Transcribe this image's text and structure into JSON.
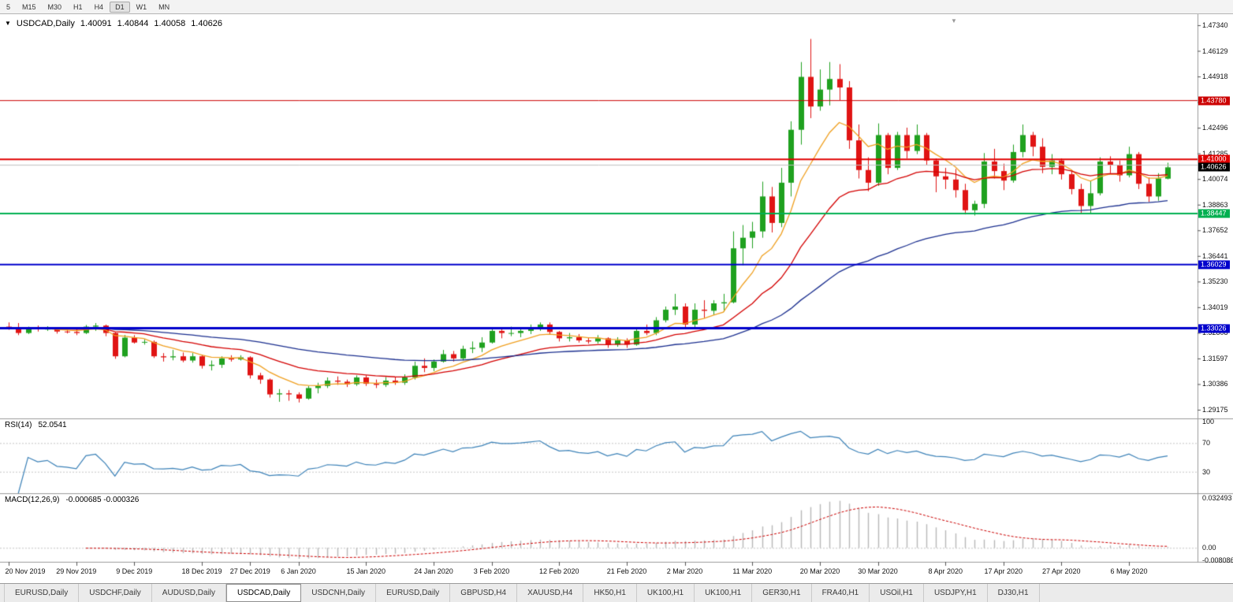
{
  "toolbar": {
    "timeframes": [
      "5",
      "M15",
      "M30",
      "H1",
      "H4",
      "D1",
      "W1",
      "MN"
    ],
    "active": "D1"
  },
  "window": {
    "title_symbol": "USDCAD,Daily",
    "open": "1.40091",
    "high": "1.40844",
    "low": "1.40058",
    "close": "1.40626"
  },
  "price_axis": {
    "max": 1.4734,
    "min": 1.29175,
    "ticks": [
      "1.47340",
      "1.46129",
      "1.44918",
      "1.43707",
      "1.42496",
      "1.41285",
      "1.40074",
      "1.38863",
      "1.37652",
      "1.36441",
      "1.35230",
      "1.34019",
      "1.32808",
      "1.31597",
      "1.30386",
      "1.29175"
    ]
  },
  "levels": [
    {
      "price": 1.4378,
      "label": "1.43780",
      "color": "#cc0000",
      "width": 1
    },
    {
      "price": 1.41,
      "label": "1.41000",
      "color": "#e00000",
      "width": 2
    },
    {
      "price": 1.4073,
      "label": "",
      "color": "#c0c0c0",
      "width": 1
    },
    {
      "price": 1.38447,
      "label": "1.38447",
      "color": "#00b050",
      "width": 2
    },
    {
      "price": 1.36029,
      "label": "1.36029",
      "color": "#0000cc",
      "width": 2
    },
    {
      "price": 1.33026,
      "label": "1.33026",
      "color": "#0000cc",
      "width": 3
    }
  ],
  "current_price": {
    "text": "1.40626",
    "value": 1.40626
  },
  "rsi_panel": {
    "name": "RSI(14)",
    "value": "52.0541",
    "period": 14,
    "scale_labels": [
      100,
      70,
      30
    ],
    "guides": [
      70,
      30
    ],
    "line_color": "#3c82b8"
  },
  "macd_panel": {
    "name": "MACD(12,26,9)",
    "values": "-0.000685 -0.000326",
    "fast": 12,
    "slow": 26,
    "signal": 9,
    "scale": {
      "max": 0.032493,
      "min": -0.008086,
      "labels": [
        "0.032493",
        "0.00",
        "-0.008086"
      ]
    },
    "hist_color": "#b8b8b8",
    "signal_color": "#cc0000"
  },
  "tabs": {
    "active_index": 3,
    "items": [
      "EURUSD,Daily",
      "USDCHF,Daily",
      "AUDUSD,Daily",
      "USDCAD,Daily",
      "USDCNH,Daily",
      "EURUSD,Daily",
      "GBPUSD,H4",
      "XAUUSD,H4",
      "HK50,H1",
      "UK100,H1",
      "UK100,H1",
      "GER30,H1",
      "FRA40,H1",
      "USOil,H1",
      "USDJPY,H1",
      "DJ30,H1"
    ]
  },
  "chart_data": {
    "type": "candlestick",
    "title": "USDCAD,Daily",
    "up_color": "#1fa11f",
    "down_color": "#e01414",
    "moving_averages": [
      {
        "period": 8,
        "color": "#f0a020"
      },
      {
        "period": 21,
        "color": "#d40000"
      },
      {
        "period": 55,
        "color": "#1b2f8f"
      }
    ],
    "date_labels": [
      {
        "label": "20 Nov 2019",
        "index": 0
      },
      {
        "label": "29 Nov 2019",
        "index": 7
      },
      {
        "label": "9 Dec 2019",
        "index": 13
      },
      {
        "label": "18 Dec 2019",
        "index": 20
      },
      {
        "label": "27 Dec 2019",
        "index": 25
      },
      {
        "label": "6 Jan 2020",
        "index": 30
      },
      {
        "label": "15 Jan 2020",
        "index": 37
      },
      {
        "label": "24 Jan 2020",
        "index": 44
      },
      {
        "label": "3 Feb 2020",
        "index": 50
      },
      {
        "label": "12 Feb 2020",
        "index": 57
      },
      {
        "label": "21 Feb 2020",
        "index": 64
      },
      {
        "label": "2 Mar 2020",
        "index": 70
      },
      {
        "label": "11 Mar 2020",
        "index": 77
      },
      {
        "label": "20 Mar 2020",
        "index": 84
      },
      {
        "label": "30 Mar 2020",
        "index": 90
      },
      {
        "label": "8 Apr 2020",
        "index": 97
      },
      {
        "label": "17 Apr 2020",
        "index": 103
      },
      {
        "label": "27 Apr 2020",
        "index": 109
      },
      {
        "label": "6 May 2020",
        "index": 116
      }
    ],
    "candles": [
      [
        1.331,
        1.333,
        1.3295,
        1.3305
      ],
      [
        1.3305,
        1.3327,
        1.327,
        1.328
      ],
      [
        1.328,
        1.331,
        1.3275,
        1.3305
      ],
      [
        1.3305,
        1.3315,
        1.3287,
        1.3298
      ],
      [
        1.3298,
        1.3312,
        1.329,
        1.33
      ],
      [
        1.33,
        1.3308,
        1.3277,
        1.3287
      ],
      [
        1.3287,
        1.3295,
        1.3278,
        1.3285
      ],
      [
        1.3285,
        1.3306,
        1.327,
        1.328
      ],
      [
        1.328,
        1.3318,
        1.3275,
        1.331
      ],
      [
        1.331,
        1.3327,
        1.329,
        1.3315
      ],
      [
        1.3315,
        1.332,
        1.3265,
        1.328
      ],
      [
        1.328,
        1.3285,
        1.3158,
        1.317
      ],
      [
        1.317,
        1.3271,
        1.3165,
        1.3258
      ],
      [
        1.3258,
        1.327,
        1.323,
        1.3235
      ],
      [
        1.3235,
        1.325,
        1.3225,
        1.3238
      ],
      [
        1.3238,
        1.3245,
        1.3162,
        1.317
      ],
      [
        1.317,
        1.3185,
        1.3145,
        1.3165
      ],
      [
        1.3165,
        1.32,
        1.3151,
        1.317
      ],
      [
        1.317,
        1.3188,
        1.3142,
        1.315
      ],
      [
        1.315,
        1.3185,
        1.314,
        1.317
      ],
      [
        1.317,
        1.3178,
        1.3112,
        1.3125
      ],
      [
        1.3125,
        1.315,
        1.3103,
        1.313
      ],
      [
        1.313,
        1.317,
        1.3115,
        1.316
      ],
      [
        1.316,
        1.3175,
        1.3145,
        1.3155
      ],
      [
        1.3155,
        1.3175,
        1.315,
        1.3165
      ],
      [
        1.3165,
        1.317,
        1.3065,
        1.308
      ],
      [
        1.308,
        1.3092,
        1.304,
        1.306
      ],
      [
        1.306,
        1.3065,
        1.2975,
        1.299
      ],
      [
        1.299,
        1.3015,
        1.2955,
        1.2995
      ],
      [
        1.2995,
        1.301,
        1.296,
        1.299
      ],
      [
        1.299,
        1.3,
        1.2952,
        1.297
      ],
      [
        1.297,
        1.303,
        1.2965,
        1.302
      ],
      [
        1.302,
        1.3045,
        1.2995,
        1.303
      ],
      [
        1.303,
        1.307,
        1.302,
        1.3055
      ],
      [
        1.3055,
        1.3075,
        1.3035,
        1.305
      ],
      [
        1.305,
        1.306,
        1.3025,
        1.3038
      ],
      [
        1.3038,
        1.308,
        1.303,
        1.307
      ],
      [
        1.307,
        1.308,
        1.303,
        1.304
      ],
      [
        1.304,
        1.306,
        1.302,
        1.3035
      ],
      [
        1.3035,
        1.3072,
        1.3025,
        1.3055
      ],
      [
        1.3055,
        1.307,
        1.3035,
        1.3045
      ],
      [
        1.3045,
        1.3085,
        1.3035,
        1.307
      ],
      [
        1.307,
        1.3145,
        1.306,
        1.3125
      ],
      [
        1.3125,
        1.316,
        1.3095,
        1.3115
      ],
      [
        1.3115,
        1.3155,
        1.31,
        1.3145
      ],
      [
        1.3145,
        1.32,
        1.314,
        1.318
      ],
      [
        1.318,
        1.3195,
        1.3145,
        1.316
      ],
      [
        1.316,
        1.322,
        1.315,
        1.3205
      ],
      [
        1.3205,
        1.324,
        1.3185,
        1.321
      ],
      [
        1.321,
        1.326,
        1.319,
        1.3235
      ],
      [
        1.3235,
        1.3305,
        1.323,
        1.329
      ],
      [
        1.329,
        1.33,
        1.3255,
        1.328
      ],
      [
        1.328,
        1.331,
        1.3265,
        1.328
      ],
      [
        1.328,
        1.33,
        1.326,
        1.329
      ],
      [
        1.329,
        1.332,
        1.3275,
        1.3305
      ],
      [
        1.3305,
        1.333,
        1.329,
        1.332
      ],
      [
        1.332,
        1.333,
        1.3275,
        1.3285
      ],
      [
        1.3285,
        1.329,
        1.324,
        1.3255
      ],
      [
        1.3255,
        1.328,
        1.324,
        1.326
      ],
      [
        1.326,
        1.3275,
        1.3235,
        1.3245
      ],
      [
        1.3245,
        1.326,
        1.323,
        1.324
      ],
      [
        1.324,
        1.327,
        1.323,
        1.3255
      ],
      [
        1.3255,
        1.326,
        1.321,
        1.3225
      ],
      [
        1.3225,
        1.326,
        1.3215,
        1.3245
      ],
      [
        1.3245,
        1.3255,
        1.321,
        1.3225
      ],
      [
        1.3225,
        1.3305,
        1.322,
        1.329
      ],
      [
        1.329,
        1.332,
        1.327,
        1.328
      ],
      [
        1.328,
        1.3355,
        1.327,
        1.334
      ],
      [
        1.334,
        1.3405,
        1.333,
        1.339
      ],
      [
        1.339,
        1.3465,
        1.3365,
        1.3405
      ],
      [
        1.3405,
        1.342,
        1.3305,
        1.332
      ],
      [
        1.332,
        1.342,
        1.33,
        1.339
      ],
      [
        1.339,
        1.3435,
        1.335,
        1.3385
      ],
      [
        1.3385,
        1.3435,
        1.3365,
        1.342
      ],
      [
        1.342,
        1.3465,
        1.338,
        1.3425
      ],
      [
        1.3425,
        1.376,
        1.342,
        1.368
      ],
      [
        1.368,
        1.379,
        1.36,
        1.373
      ],
      [
        1.373,
        1.3805,
        1.368,
        1.376
      ],
      [
        1.376,
        1.3995,
        1.373,
        1.3925
      ],
      [
        1.3925,
        1.397,
        1.3755,
        1.38
      ],
      [
        1.38,
        1.406,
        1.378,
        1.399
      ],
      [
        1.399,
        1.428,
        1.3925,
        1.424
      ],
      [
        1.424,
        1.456,
        1.417,
        1.449
      ],
      [
        1.449,
        1.4669,
        1.4295,
        1.435
      ],
      [
        1.435,
        1.4525,
        1.433,
        1.443
      ],
      [
        1.443,
        1.456,
        1.4355,
        1.448
      ],
      [
        1.448,
        1.455,
        1.438,
        1.444
      ],
      [
        1.444,
        1.447,
        1.415,
        1.419
      ],
      [
        1.419,
        1.4265,
        1.401,
        1.405
      ],
      [
        1.405,
        1.411,
        1.395,
        1.399
      ],
      [
        1.399,
        1.427,
        1.3975,
        1.4215
      ],
      [
        1.4215,
        1.4225,
        1.403,
        1.406
      ],
      [
        1.406,
        1.423,
        1.405,
        1.4215
      ],
      [
        1.4215,
        1.425,
        1.4105,
        1.414
      ],
      [
        1.414,
        1.4265,
        1.4125,
        1.4215
      ],
      [
        1.4215,
        1.4225,
        1.4075,
        1.4095
      ],
      [
        1.4095,
        1.4105,
        1.3945,
        1.402
      ],
      [
        1.402,
        1.406,
        1.396,
        1.4005
      ],
      [
        1.4005,
        1.4055,
        1.392,
        1.3955
      ],
      [
        1.3955,
        1.3985,
        1.384,
        1.386
      ],
      [
        1.386,
        1.3905,
        1.3835,
        1.389
      ],
      [
        1.389,
        1.413,
        1.387,
        1.409
      ],
      [
        1.409,
        1.415,
        1.401,
        1.4045
      ],
      [
        1.4045,
        1.408,
        1.3955,
        1.4
      ],
      [
        1.4,
        1.417,
        1.399,
        1.4135
      ],
      [
        1.4135,
        1.4265,
        1.411,
        1.4215
      ],
      [
        1.4215,
        1.423,
        1.4115,
        1.416
      ],
      [
        1.416,
        1.42,
        1.4035,
        1.4065
      ],
      [
        1.4065,
        1.4125,
        1.403,
        1.4095
      ],
      [
        1.4095,
        1.4105,
        1.4005,
        1.403
      ],
      [
        1.403,
        1.405,
        1.3935,
        1.396
      ],
      [
        1.396,
        1.3985,
        1.3845,
        1.388
      ],
      [
        1.388,
        1.4,
        1.3845,
        1.394
      ],
      [
        1.394,
        1.411,
        1.393,
        1.409
      ],
      [
        1.409,
        1.4115,
        1.4035,
        1.4075
      ],
      [
        1.4075,
        1.4095,
        1.3995,
        1.4025
      ],
      [
        1.4025,
        1.416,
        1.4015,
        1.4125
      ],
      [
        1.4125,
        1.4135,
        1.396,
        1.3985
      ],
      [
        1.3985,
        1.4015,
        1.39,
        1.3925
      ],
      [
        1.3925,
        1.4035,
        1.3905,
        1.401
      ],
      [
        1.40091,
        1.40844,
        1.40058,
        1.40626
      ]
    ]
  }
}
